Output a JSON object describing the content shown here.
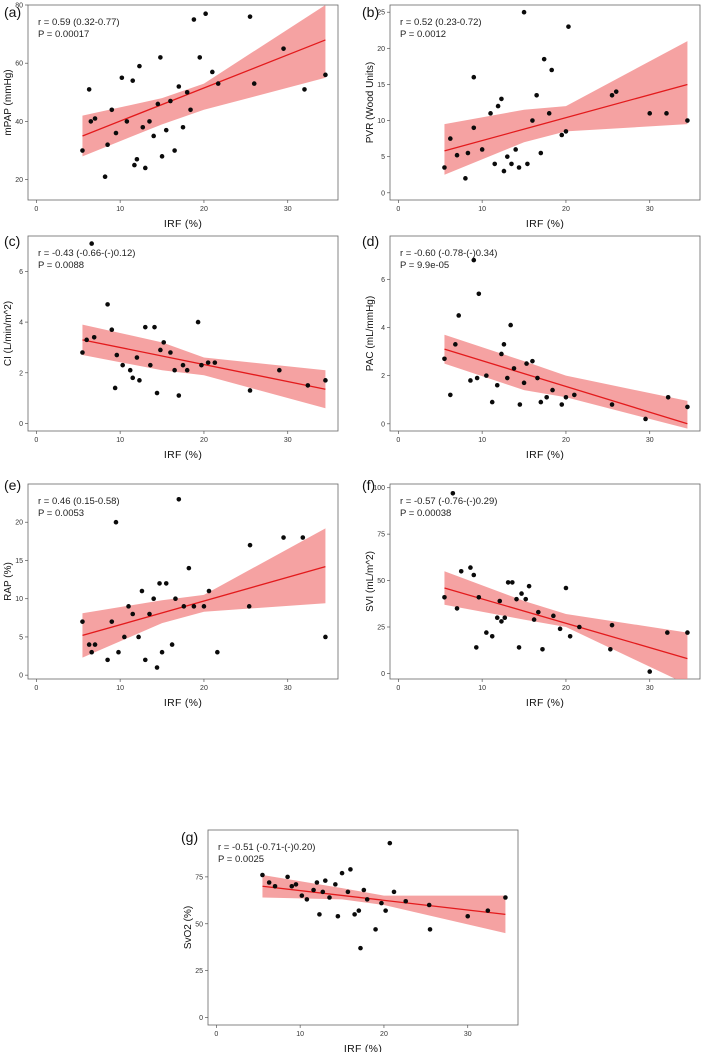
{
  "chart_data": [
    {
      "type": "scatter",
      "panel": "(a)",
      "xlabel": "IRF (%)",
      "ylabel": "mPAP (mmHg)",
      "stat_r": "r = 0.59 (0.32-0.77)",
      "stat_p": "P = 0.00017",
      "xlim": [
        -1,
        36
      ],
      "ylim": [
        13,
        80
      ],
      "xticks": [
        0,
        10,
        20,
        30
      ],
      "yticks": [
        20,
        40,
        60,
        80
      ],
      "fit": {
        "x": [
          5.5,
          34.5
        ],
        "y": [
          35,
          68
        ]
      },
      "band_upper": [
        [
          5.5,
          42
        ],
        [
          15,
          48
        ],
        [
          20,
          53
        ],
        [
          34.5,
          80
        ]
      ],
      "band_lower": [
        [
          5.5,
          28
        ],
        [
          15,
          39
        ],
        [
          20,
          44
        ],
        [
          34.5,
          55
        ]
      ],
      "points": [
        [
          5.5,
          30
        ],
        [
          6.3,
          51
        ],
        [
          6.5,
          40
        ],
        [
          7,
          41
        ],
        [
          8.2,
          21
        ],
        [
          8.5,
          32
        ],
        [
          9,
          44
        ],
        [
          9.5,
          36
        ],
        [
          10.2,
          55
        ],
        [
          10.8,
          40
        ],
        [
          11.5,
          54
        ],
        [
          11.7,
          25
        ],
        [
          12,
          27
        ],
        [
          12.3,
          59
        ],
        [
          12.7,
          38
        ],
        [
          13,
          24
        ],
        [
          13.5,
          40
        ],
        [
          14,
          35
        ],
        [
          14.5,
          46
        ],
        [
          14.8,
          62
        ],
        [
          15,
          28
        ],
        [
          15.5,
          37
        ],
        [
          16,
          47
        ],
        [
          16.5,
          30
        ],
        [
          17,
          52
        ],
        [
          17.5,
          38
        ],
        [
          18,
          50
        ],
        [
          18.4,
          44
        ],
        [
          18.8,
          75
        ],
        [
          19.5,
          62
        ],
        [
          20.2,
          77
        ],
        [
          21,
          57
        ],
        [
          21.7,
          53
        ],
        [
          25.5,
          76
        ],
        [
          26,
          53
        ],
        [
          29.5,
          65
        ],
        [
          32,
          51
        ],
        [
          34.5,
          56
        ]
      ]
    },
    {
      "type": "scatter",
      "panel": "(b)",
      "xlabel": "IRF (%)",
      "ylabel": "PVR (Wood Units)",
      "stat_r": "r = 0.52 (0.23-0.72)",
      "stat_p": "P = 0.0012",
      "xlim": [
        -1,
        36
      ],
      "ylim": [
        -1,
        26
      ],
      "xticks": [
        0,
        10,
        20,
        30
      ],
      "yticks": [
        0,
        5,
        10,
        15,
        20,
        25
      ],
      "fit": {
        "x": [
          5.5,
          34.5
        ],
        "y": [
          5.8,
          15
        ]
      },
      "band_upper": [
        [
          5.5,
          9.5
        ],
        [
          15,
          11.5
        ],
        [
          20,
          12
        ],
        [
          34.5,
          21
        ]
      ],
      "band_lower": [
        [
          5.5,
          2.5
        ],
        [
          15,
          7
        ],
        [
          20,
          8.5
        ],
        [
          34.5,
          9.5
        ]
      ],
      "points": [
        [
          5.5,
          3.5
        ],
        [
          6.2,
          7.5
        ],
        [
          7,
          5.2
        ],
        [
          8,
          2
        ],
        [
          8.3,
          5.5
        ],
        [
          9,
          9
        ],
        [
          9,
          16
        ],
        [
          10,
          6
        ],
        [
          11,
          11
        ],
        [
          11.5,
          4
        ],
        [
          11.9,
          12
        ],
        [
          12.3,
          13
        ],
        [
          12.6,
          3
        ],
        [
          13,
          5
        ],
        [
          13.5,
          4
        ],
        [
          14,
          6
        ],
        [
          14.4,
          3.5
        ],
        [
          15,
          25
        ],
        [
          15.4,
          4
        ],
        [
          16,
          10
        ],
        [
          16.5,
          13.5
        ],
        [
          17,
          5.5
        ],
        [
          17.4,
          18.5
        ],
        [
          18,
          11
        ],
        [
          18.3,
          17
        ],
        [
          19.5,
          8
        ],
        [
          20,
          8.5
        ],
        [
          20.3,
          23
        ],
        [
          25.5,
          13.5
        ],
        [
          26,
          14
        ],
        [
          30,
          11
        ],
        [
          32,
          11
        ],
        [
          34.5,
          10
        ]
      ]
    },
    {
      "type": "scatter",
      "panel": "(c)",
      "xlabel": "IRF (%)",
      "ylabel": "CI (L/min/m^2)",
      "stat_r": "r = -0.43 (-0.66-(-)0.12)",
      "stat_p": "P = 0.0088",
      "xlim": [
        -1,
        36
      ],
      "ylim": [
        -0.3,
        7.4
      ],
      "xticks": [
        0,
        10,
        20,
        30
      ],
      "yticks": [
        0,
        2,
        4,
        6
      ],
      "fit": {
        "x": [
          5.5,
          34.5
        ],
        "y": [
          3.3,
          1.35
        ]
      },
      "band_upper": [
        [
          5.5,
          3.9
        ],
        [
          15,
          3.2
        ],
        [
          20,
          2.6
        ],
        [
          34.5,
          2.1
        ]
      ],
      "band_lower": [
        [
          5.5,
          2.7
        ],
        [
          15,
          2.1
        ],
        [
          20,
          1.9
        ],
        [
          34.5,
          0.6
        ]
      ],
      "points": [
        [
          5.5,
          2.8
        ],
        [
          6,
          3.3
        ],
        [
          6.6,
          7.1
        ],
        [
          6.9,
          3.4
        ],
        [
          8.5,
          4.7
        ],
        [
          9,
          3.7
        ],
        [
          9.4,
          1.4
        ],
        [
          9.6,
          2.7
        ],
        [
          10.3,
          2.3
        ],
        [
          11.2,
          2.1
        ],
        [
          11.5,
          1.8
        ],
        [
          12,
          2.6
        ],
        [
          12.3,
          1.7
        ],
        [
          13,
          3.8
        ],
        [
          13.6,
          2.3
        ],
        [
          14.1,
          3.8
        ],
        [
          14.4,
          1.2
        ],
        [
          14.8,
          2.9
        ],
        [
          15.2,
          3.2
        ],
        [
          16,
          2.8
        ],
        [
          16.5,
          2.1
        ],
        [
          17,
          1.1
        ],
        [
          17.5,
          2.3
        ],
        [
          18,
          2.1
        ],
        [
          19.3,
          4
        ],
        [
          19.7,
          2.3
        ],
        [
          20.5,
          2.4
        ],
        [
          21.3,
          2.4
        ],
        [
          25.5,
          1.3
        ],
        [
          29,
          2.1
        ],
        [
          32.4,
          1.5
        ],
        [
          34.5,
          1.7
        ]
      ]
    },
    {
      "type": "scatter",
      "panel": "(d)",
      "xlabel": "IRF (%)",
      "ylabel": "PAC (mL/mmHg)",
      "stat_r": "r = -0.60 (-0.78-(-)0.34)",
      "stat_p": "P = 9.9e-05",
      "xlim": [
        -1,
        36
      ],
      "ylim": [
        -0.3,
        7.8
      ],
      "xticks": [
        0,
        10,
        20,
        30
      ],
      "yticks": [
        0,
        2,
        4,
        6
      ],
      "fit": {
        "x": [
          5.5,
          34.5
        ],
        "y": [
          3.1,
          0
        ]
      },
      "band_upper": [
        [
          5.5,
          3.7
        ],
        [
          15,
          2.6
        ],
        [
          20,
          2
        ],
        [
          34.5,
          0.95
        ]
      ],
      "band_lower": [
        [
          5.5,
          2.5
        ],
        [
          15,
          1.4
        ],
        [
          20,
          1.1
        ],
        [
          34.5,
          -0.2
        ]
      ],
      "points": [
        [
          5.5,
          2.7
        ],
        [
          6.2,
          1.2
        ],
        [
          6.8,
          3.3
        ],
        [
          7.2,
          4.5
        ],
        [
          8.6,
          1.8
        ],
        [
          9,
          6.8
        ],
        [
          9.4,
          1.9
        ],
        [
          9.6,
          5.4
        ],
        [
          10.5,
          2
        ],
        [
          11.2,
          0.9
        ],
        [
          11.8,
          1.6
        ],
        [
          12.3,
          2.9
        ],
        [
          12.6,
          3.3
        ],
        [
          13,
          1.9
        ],
        [
          13.4,
          4.1
        ],
        [
          13.8,
          2.3
        ],
        [
          14.5,
          0.8
        ],
        [
          15,
          1.7
        ],
        [
          15.3,
          2.5
        ],
        [
          16,
          2.6
        ],
        [
          16.6,
          1.9
        ],
        [
          17,
          0.9
        ],
        [
          17.7,
          1.1
        ],
        [
          18.4,
          1.4
        ],
        [
          19.5,
          0.8
        ],
        [
          20,
          1.1
        ],
        [
          21,
          1.2
        ],
        [
          25.5,
          0.8
        ],
        [
          29.5,
          0.2
        ],
        [
          32.2,
          1.1
        ],
        [
          34.5,
          0.7
        ]
      ]
    },
    {
      "type": "scatter",
      "panel": "(e)",
      "xlabel": "IRF (%)",
      "ylabel": "RAP (%)",
      "stat_r": "r = 0.46 (0.15-0.58)",
      "stat_p": "P = 0.0053",
      "xlim": [
        -1,
        36
      ],
      "ylim": [
        -0.5,
        25
      ],
      "xticks": [
        0,
        10,
        20,
        30
      ],
      "yticks": [
        0,
        5,
        10,
        15,
        20
      ],
      "fit": {
        "x": [
          5.5,
          34.5
        ],
        "y": [
          5.2,
          14.2
        ]
      },
      "band_upper": [
        [
          5.5,
          8.1
        ],
        [
          15,
          9.8
        ],
        [
          20,
          10.5
        ],
        [
          34.5,
          19.2
        ]
      ],
      "band_lower": [
        [
          5.5,
          2.3
        ],
        [
          15,
          6.8
        ],
        [
          20,
          8.3
        ],
        [
          34.5,
          9.4
        ]
      ],
      "points": [
        [
          5.5,
          7
        ],
        [
          6.3,
          4
        ],
        [
          6.6,
          3
        ],
        [
          7,
          4
        ],
        [
          8.5,
          2
        ],
        [
          9,
          7
        ],
        [
          9.5,
          20
        ],
        [
          9.8,
          3
        ],
        [
          10.5,
          5
        ],
        [
          11,
          9
        ],
        [
          11.5,
          8
        ],
        [
          12.2,
          5
        ],
        [
          12.6,
          11
        ],
        [
          13,
          2
        ],
        [
          13.5,
          8
        ],
        [
          14,
          10
        ],
        [
          14.4,
          1
        ],
        [
          14.7,
          12
        ],
        [
          15,
          3
        ],
        [
          15.5,
          12
        ],
        [
          16.2,
          4
        ],
        [
          16.6,
          10
        ],
        [
          17,
          23
        ],
        [
          17.6,
          9
        ],
        [
          18.2,
          14
        ],
        [
          18.8,
          9
        ],
        [
          20,
          9
        ],
        [
          20.6,
          11
        ],
        [
          21.6,
          3
        ],
        [
          25.5,
          17
        ],
        [
          25.4,
          9
        ],
        [
          29.5,
          18
        ],
        [
          31.8,
          18
        ],
        [
          34.5,
          5
        ]
      ]
    },
    {
      "type": "scatter",
      "panel": "(f)",
      "xlabel": "IRF (%)",
      "ylabel": "SVI (mL/m^2)",
      "stat_r": "r = -0.57 (-0.76-(-)0.29)",
      "stat_p": "P = 0.00038",
      "xlim": [
        -1,
        36
      ],
      "ylim": [
        -3,
        102
      ],
      "xticks": [
        0,
        10,
        20,
        30
      ],
      "yticks": [
        0,
        25,
        50,
        75,
        100
      ],
      "fit": {
        "x": [
          5.5,
          34.5
        ],
        "y": [
          46,
          8
        ]
      },
      "band_upper": [
        [
          5.5,
          55
        ],
        [
          15,
          39
        ],
        [
          20,
          32
        ],
        [
          34.5,
          22
        ]
      ],
      "band_lower": [
        [
          5.5,
          37
        ],
        [
          15,
          29
        ],
        [
          20,
          25
        ],
        [
          34.5,
          -6
        ]
      ],
      "points": [
        [
          5.5,
          41
        ],
        [
          6.5,
          97
        ],
        [
          7,
          35
        ],
        [
          7.5,
          55
        ],
        [
          8.6,
          57
        ],
        [
          9,
          53
        ],
        [
          9.3,
          14
        ],
        [
          9.6,
          41
        ],
        [
          10.5,
          22
        ],
        [
          11.2,
          20
        ],
        [
          11.8,
          30
        ],
        [
          12.1,
          39
        ],
        [
          12.3,
          28
        ],
        [
          12.7,
          30
        ],
        [
          13.1,
          49
        ],
        [
          13.6,
          49
        ],
        [
          14.1,
          40
        ],
        [
          14.4,
          14
        ],
        [
          14.7,
          43
        ],
        [
          15.2,
          40
        ],
        [
          15.6,
          47
        ],
        [
          16.2,
          29
        ],
        [
          16.7,
          33
        ],
        [
          17.2,
          13
        ],
        [
          18.5,
          31
        ],
        [
          19.3,
          24
        ],
        [
          20,
          46
        ],
        [
          20.5,
          20
        ],
        [
          21.6,
          25
        ],
        [
          25.5,
          26
        ],
        [
          25.3,
          13
        ],
        [
          30,
          1
        ],
        [
          32.1,
          22
        ],
        [
          34.5,
          22
        ]
      ]
    },
    {
      "type": "scatter",
      "panel": "(g)",
      "xlabel": "IRF (%)",
      "ylabel": "SvO2 (%)",
      "stat_r": "r = -0.51 (-0.71-(-)0.20)",
      "stat_p": "P = 0.0025",
      "xlim": [
        -1,
        36
      ],
      "ylim": [
        -4,
        100
      ],
      "xticks": [
        0,
        10,
        20,
        30
      ],
      "yticks": [
        0,
        25,
        50,
        75
      ],
      "fit": {
        "x": [
          5.5,
          34.5
        ],
        "y": [
          70,
          55
        ]
      },
      "band_upper": [
        [
          5.5,
          76
        ],
        [
          15,
          69
        ],
        [
          20,
          65
        ],
        [
          34.5,
          65
        ]
      ],
      "band_lower": [
        [
          5.5,
          64
        ],
        [
          15,
          63
        ],
        [
          20,
          60
        ],
        [
          34.5,
          45
        ]
      ],
      "points": [
        [
          5.5,
          76
        ],
        [
          6.3,
          72
        ],
        [
          7,
          70
        ],
        [
          8.5,
          75
        ],
        [
          9,
          70
        ],
        [
          9.5,
          71
        ],
        [
          10.2,
          65
        ],
        [
          10.8,
          63
        ],
        [
          11.6,
          68
        ],
        [
          12,
          72
        ],
        [
          12.3,
          55
        ],
        [
          12.7,
          67
        ],
        [
          13,
          73
        ],
        [
          13.5,
          64
        ],
        [
          14.2,
          71
        ],
        [
          14.5,
          54
        ],
        [
          15,
          77
        ],
        [
          15.7,
          67
        ],
        [
          16,
          79
        ],
        [
          16.5,
          55
        ],
        [
          17,
          57
        ],
        [
          17.6,
          68
        ],
        [
          17.2,
          37
        ],
        [
          18,
          63
        ],
        [
          19,
          47
        ],
        [
          19.7,
          61
        ],
        [
          20.2,
          57
        ],
        [
          20.7,
          93
        ],
        [
          21.2,
          67
        ],
        [
          22.6,
          62
        ],
        [
          25.5,
          47
        ],
        [
          25.4,
          60
        ],
        [
          30,
          54
        ],
        [
          32.4,
          57
        ],
        [
          34.5,
          64
        ]
      ]
    }
  ]
}
